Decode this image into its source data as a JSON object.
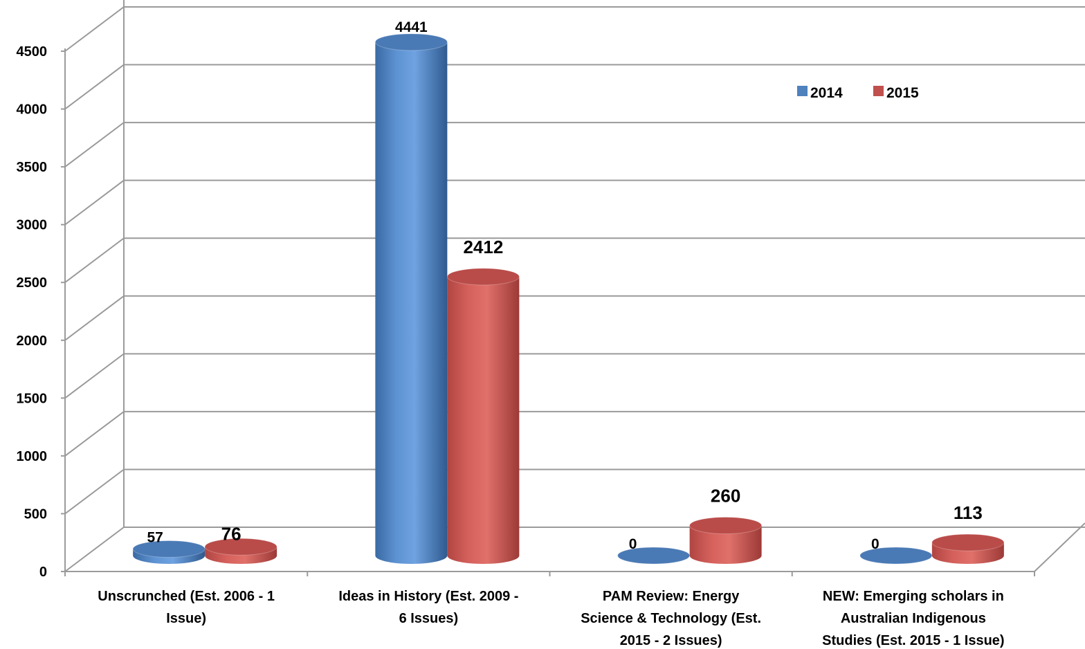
{
  "chart_data": {
    "type": "bar",
    "style": "3d-cylinder",
    "categories": [
      [
        "Unscrunched (Est. 2006 - 1",
        "Issue)"
      ],
      [
        "Ideas in History (Est. 2009 -",
        "6 Issues)"
      ],
      [
        "PAM Review: Energy",
        "Science & Technology (Est.",
        "2015 - 2 Issues)"
      ],
      [
        "NEW: Emerging scholars in",
        "Australian Indigenous",
        "Studies (Est. 2015 - 1 Issue)"
      ]
    ],
    "series": [
      {
        "name": "2014",
        "color": "#4f81bd",
        "values": [
          57,
          4441,
          0,
          0
        ]
      },
      {
        "name": "2015",
        "color": "#c0504d",
        "values": [
          76,
          2412,
          260,
          113
        ]
      }
    ],
    "ylim": [
      0,
      4500
    ],
    "yticks": [
      0,
      500,
      1000,
      1500,
      2000,
      2500,
      3000,
      3500,
      4000,
      4500
    ],
    "grid": true,
    "legend_position": "top-right"
  }
}
